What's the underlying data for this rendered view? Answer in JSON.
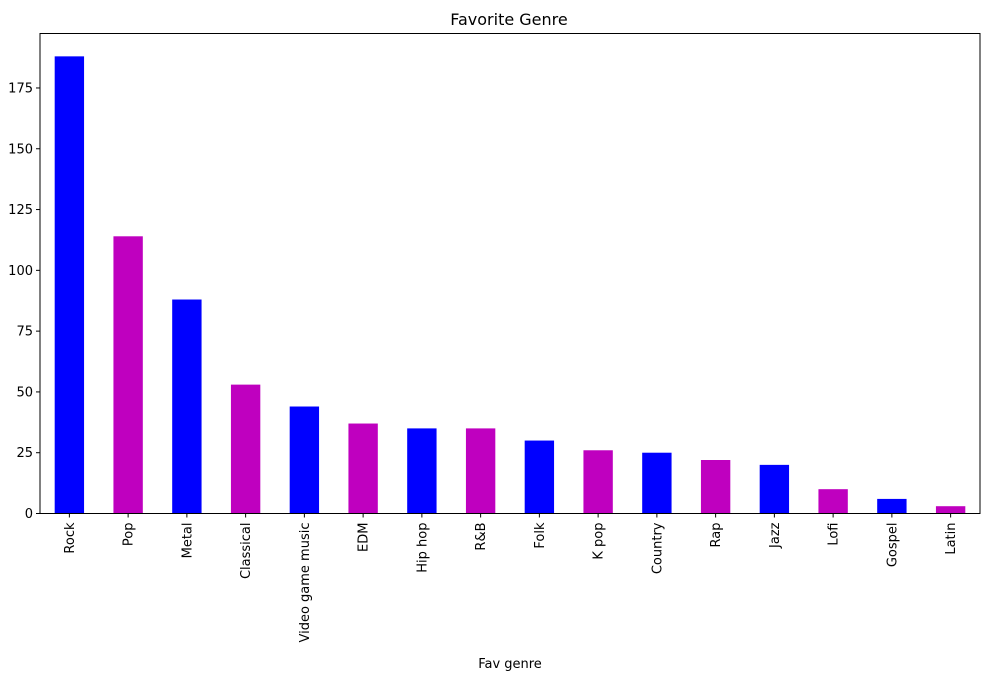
{
  "chart_data": {
    "type": "bar",
    "title": "Favorite Genre",
    "xlabel": "Fav genre",
    "ylabel": "",
    "categories": [
      "Rock",
      "Pop",
      "Metal",
      "Classical",
      "Video game music",
      "EDM",
      "Hip hop",
      "R&B",
      "Folk",
      "K pop",
      "Country",
      "Rap",
      "Jazz",
      "Lofi",
      "Gospel",
      "Latin"
    ],
    "values": [
      188,
      114,
      88,
      53,
      44,
      37,
      35,
      35,
      30,
      26,
      25,
      22,
      20,
      10,
      6,
      3
    ],
    "ylim": [
      0,
      197.4
    ],
    "yticks": [
      0,
      25,
      50,
      75,
      100,
      125,
      150,
      175
    ],
    "grid": false,
    "legend": "none",
    "bar_colors": [
      "#0000ff",
      "#bf00bf"
    ]
  }
}
